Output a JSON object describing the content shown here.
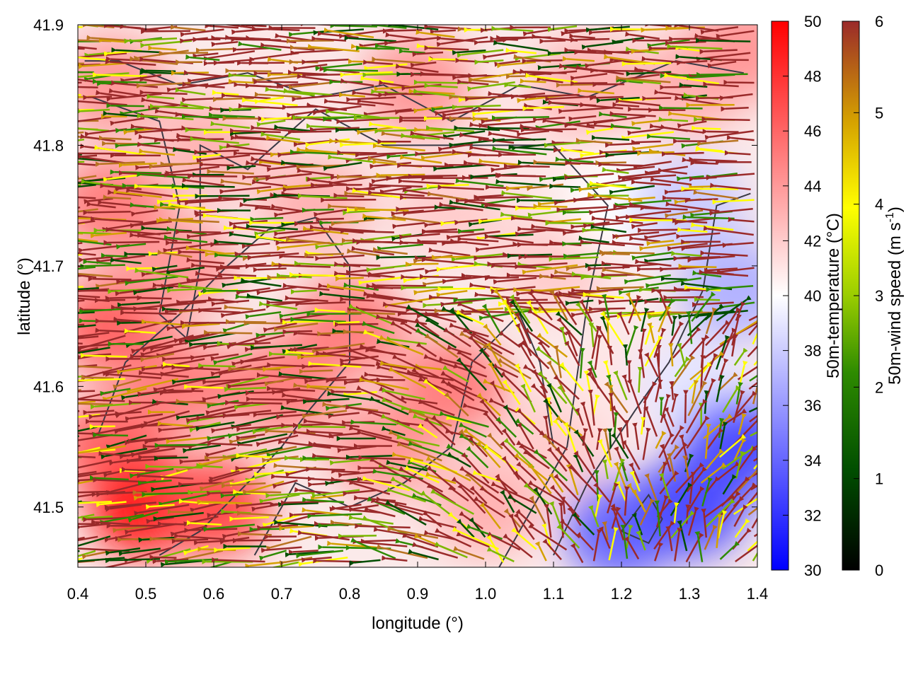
{
  "chart_data": {
    "type": "heatmap",
    "subtype": "wind vector field over temperature map",
    "xlabel": "longitude (°)",
    "ylabel": "latitude (°)",
    "xlim": [
      0.4,
      1.4
    ],
    "ylim": [
      41.45,
      41.9
    ],
    "xticks": [
      0.4,
      0.5,
      0.6,
      0.7,
      0.8,
      0.9,
      1.0,
      1.1,
      1.2,
      1.3,
      1.4
    ],
    "xtick_labels": [
      "0.4",
      "0.5",
      "0.6",
      "0.7",
      "0.8",
      "0.9",
      "1.0",
      "1.1",
      "1.2",
      "1.3",
      "1.4"
    ],
    "yticks": [
      41.5,
      41.6,
      41.7,
      41.8,
      41.9
    ],
    "ytick_labels": [
      "41.5",
      "41.6",
      "41.7",
      "41.8",
      "41.9"
    ],
    "grid": false,
    "temperature_colorbar": {
      "label": "50m-temperature (°C)",
      "range": [
        30,
        50
      ],
      "ticks": [
        30,
        32,
        34,
        36,
        38,
        40,
        42,
        44,
        46,
        48,
        50
      ],
      "tick_labels": [
        "30",
        "32",
        "34",
        "36",
        "38",
        "40",
        "42",
        "44",
        "46",
        "48",
        "50"
      ],
      "colors": [
        "#0000ff",
        "#ffffff",
        "#ff0000"
      ]
    },
    "wind_colorbar": {
      "label_main": "50m-wind speed (m s",
      "label_sup": "-1",
      "label_end": ")",
      "range": [
        0,
        6
      ],
      "ticks": [
        0,
        1,
        2,
        3,
        4,
        5,
        6
      ],
      "tick_labels": [
        "0",
        "1",
        "2",
        "3",
        "4",
        "5",
        "6"
      ],
      "colors": [
        "#000000",
        "#006400",
        "#7ab800",
        "#ffff00",
        "#d4a000",
        "#b87320",
        "#9a2a2a"
      ]
    },
    "temperature_field_points": [
      {
        "lon": 0.45,
        "lat": 41.85,
        "t": 44
      },
      {
        "lon": 0.45,
        "lat": 41.75,
        "t": 45
      },
      {
        "lon": 0.45,
        "lat": 41.65,
        "t": 46
      },
      {
        "lon": 0.45,
        "lat": 41.55,
        "t": 46
      },
      {
        "lon": 0.5,
        "lat": 41.5,
        "t": 49
      },
      {
        "lon": 0.6,
        "lat": 41.5,
        "t": 47
      },
      {
        "lon": 0.55,
        "lat": 41.6,
        "t": 45
      },
      {
        "lon": 0.55,
        "lat": 41.7,
        "t": 44
      },
      {
        "lon": 0.6,
        "lat": 41.8,
        "t": 43
      },
      {
        "lon": 0.7,
        "lat": 41.85,
        "t": 41
      },
      {
        "lon": 0.75,
        "lat": 41.75,
        "t": 43
      },
      {
        "lon": 0.8,
        "lat": 41.65,
        "t": 45
      },
      {
        "lon": 0.7,
        "lat": 41.6,
        "t": 45
      },
      {
        "lon": 0.85,
        "lat": 41.55,
        "t": 44
      },
      {
        "lon": 0.9,
        "lat": 41.85,
        "t": 44
      },
      {
        "lon": 0.95,
        "lat": 41.75,
        "t": 42
      },
      {
        "lon": 0.95,
        "lat": 41.6,
        "t": 45
      },
      {
        "lon": 1.0,
        "lat": 41.5,
        "t": 43
      },
      {
        "lon": 1.05,
        "lat": 41.8,
        "t": 41
      },
      {
        "lon": 1.1,
        "lat": 41.7,
        "t": 42
      },
      {
        "lon": 1.1,
        "lat": 41.55,
        "t": 42
      },
      {
        "lon": 1.15,
        "lat": 41.85,
        "t": 43
      },
      {
        "lon": 1.2,
        "lat": 41.75,
        "t": 40
      },
      {
        "lon": 1.2,
        "lat": 41.6,
        "t": 41
      },
      {
        "lon": 1.2,
        "lat": 41.48,
        "t": 34
      },
      {
        "lon": 1.3,
        "lat": 41.85,
        "t": 43
      },
      {
        "lon": 1.3,
        "lat": 41.75,
        "t": 38
      },
      {
        "lon": 1.3,
        "lat": 41.6,
        "t": 39
      },
      {
        "lon": 1.3,
        "lat": 41.5,
        "t": 33
      },
      {
        "lon": 1.37,
        "lat": 41.68,
        "t": 37
      },
      {
        "lon": 1.37,
        "lat": 41.55,
        "t": 33
      },
      {
        "lon": 1.38,
        "lat": 41.88,
        "t": 44
      }
    ],
    "wind_direction_note": "predominantly westward (toward lower longitude)",
    "wind_speed_max_shown": 6,
    "contour_lines": [
      [
        [
          0.41,
          41.87
        ],
        [
          0.46,
          41.87
        ],
        [
          0.55,
          41.85
        ],
        [
          0.65,
          41.86
        ],
        [
          0.75,
          41.84
        ],
        [
          0.85,
          41.85
        ],
        [
          0.95,
          41.82
        ],
        [
          1.05,
          41.85
        ],
        [
          1.15,
          41.84
        ],
        [
          1.28,
          41.87
        ],
        [
          1.38,
          41.86
        ]
      ],
      [
        [
          0.42,
          41.84
        ],
        [
          0.52,
          41.82
        ],
        [
          0.55,
          41.75
        ],
        [
          0.52,
          41.66
        ],
        [
          0.56,
          41.64
        ],
        [
          0.58,
          41.7
        ],
        [
          0.58,
          41.8
        ],
        [
          0.65,
          41.78
        ],
        [
          0.75,
          41.83
        ],
        [
          0.85,
          41.8
        ],
        [
          0.96,
          41.8
        ],
        [
          1.1,
          41.8
        ],
        [
          1.18,
          41.75
        ],
        [
          1.15,
          41.67
        ],
        [
          1.12,
          41.55
        ],
        [
          1.05,
          41.48
        ],
        [
          1.02,
          41.45
        ]
      ],
      [
        [
          0.43,
          41.56
        ],
        [
          0.47,
          41.62
        ],
        [
          0.55,
          41.66
        ],
        [
          0.62,
          41.7
        ],
        [
          0.68,
          41.73
        ],
        [
          0.75,
          41.74
        ],
        [
          0.8,
          41.7
        ],
        [
          0.8,
          41.62
        ],
        [
          0.74,
          41.58
        ],
        [
          0.7,
          41.55
        ],
        [
          0.65,
          41.52
        ],
        [
          0.58,
          41.48
        ],
        [
          0.52,
          41.46
        ]
      ],
      [
        [
          0.66,
          41.46
        ],
        [
          0.72,
          41.52
        ],
        [
          0.8,
          41.5
        ],
        [
          0.88,
          41.52
        ],
        [
          0.95,
          41.55
        ],
        [
          0.98,
          41.62
        ],
        [
          1.05,
          41.66
        ],
        [
          1.08,
          41.62
        ],
        [
          1.1,
          41.55
        ]
      ],
      [
        [
          1.1,
          41.46
        ],
        [
          1.15,
          41.52
        ],
        [
          1.22,
          41.58
        ],
        [
          1.27,
          41.62
        ],
        [
          1.32,
          41.68
        ],
        [
          1.34,
          41.75
        ],
        [
          1.39,
          41.76
        ]
      ],
      [
        [
          1.2,
          41.48
        ],
        [
          1.24,
          41.51
        ],
        [
          1.26,
          41.49
        ],
        [
          1.24,
          41.47
        ],
        [
          1.2,
          41.48
        ]
      ]
    ]
  }
}
